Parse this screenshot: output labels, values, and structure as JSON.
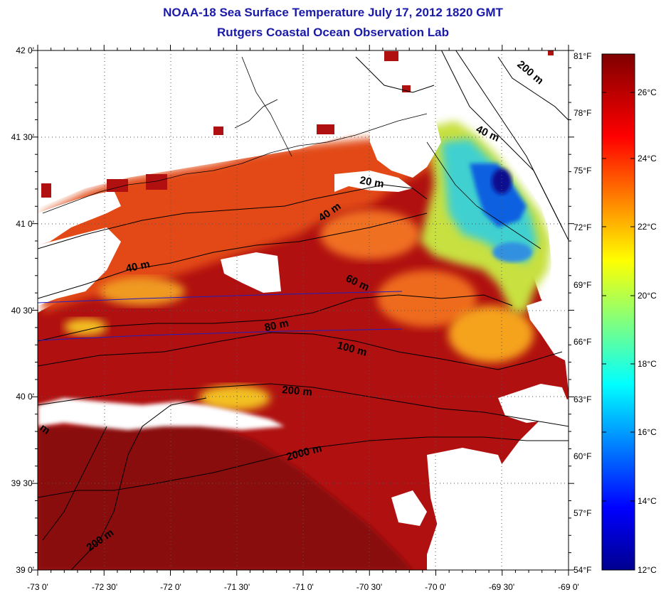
{
  "title": "NOAA-18 Sea Surface Temperature July 17, 2012 1820 GMT",
  "subtitle": "Rutgers Coastal Ocean Observation Lab",
  "lat_ticks": [
    "42 0'",
    "41 30'",
    "41 0'",
    "40 30'",
    "40 0'",
    "39 30'",
    "39 0'"
  ],
  "lon_ticks": [
    "-73 0'",
    "-72 30'",
    "-72 0'",
    "-71 30'",
    "-71 0'",
    "-70 30'",
    "-70 0'",
    "-69 30'",
    "-69 0'"
  ],
  "fahrenheit_ticks": [
    "81°F",
    "78°F",
    "75°F",
    "72°F",
    "69°F",
    "66°F",
    "63°F",
    "60°F",
    "57°F",
    "54°F"
  ],
  "celsius_ticks": [
    "26°C",
    "24°C",
    "22°C",
    "20°C",
    "18°C",
    "16°C",
    "14°C",
    "12°C"
  ],
  "contour_labels": {
    "c200_ne": "200 m",
    "c40_ne": "40 m",
    "c20": "20 m",
    "c40_mid": "40 m",
    "c40_w": "40 m",
    "c60": "60 m",
    "c80": "80 m",
    "c100": "100 m",
    "c200_mid": "200 m",
    "c2000": "2000 m",
    "c200_sw": "200 m",
    "m_edge": "m"
  },
  "map": {
    "lon_range": [
      -73,
      -69
    ],
    "lat_range": [
      39,
      42
    ],
    "colorbar_range_f": [
      54,
      81
    ],
    "colorbar_colors": [
      "#00008f",
      "#0000ff",
      "#00ffff",
      "#ffff00",
      "#ff0000",
      "#800000"
    ]
  }
}
